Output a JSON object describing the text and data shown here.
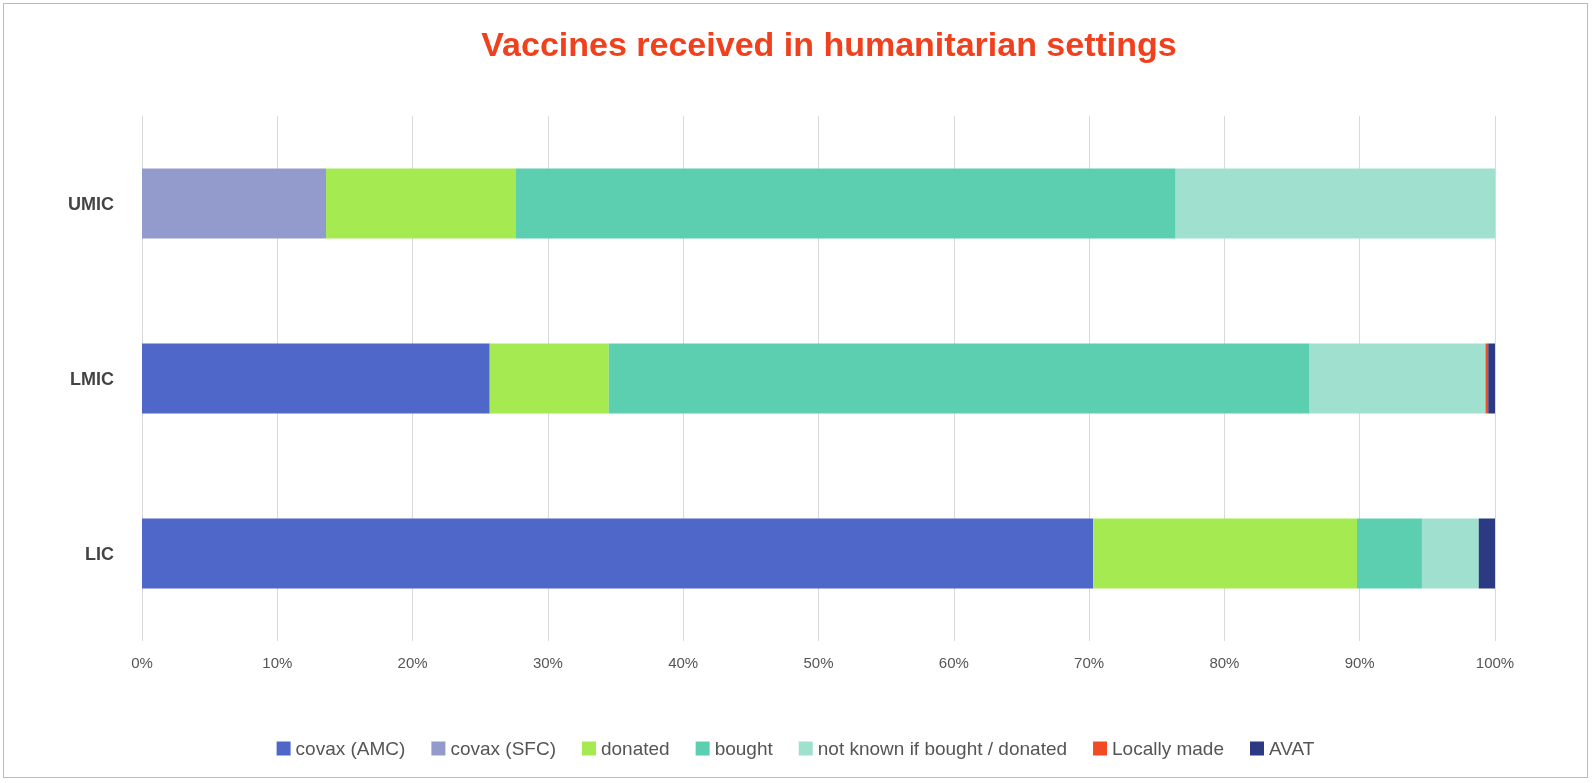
{
  "chart_data": {
    "type": "bar",
    "title": "Vaccines received in humanitarian settings",
    "orientation": "horizontal",
    "stacked": true,
    "categories": [
      "UMIC",
      "LMIC",
      "LIC"
    ],
    "series": [
      {
        "name": "covax (AMC)",
        "color": "#4f67c9",
        "values": [
          0,
          25.7,
          70.3
        ]
      },
      {
        "name": "covax (SFC)",
        "color": "#939bcc",
        "values": [
          13.6,
          0,
          0
        ]
      },
      {
        "name": "donated",
        "color": "#a6ea52",
        "values": [
          14.0,
          8.8,
          19.5
        ]
      },
      {
        "name": "bought",
        "color": "#5ccfb1",
        "values": [
          48.8,
          51.8,
          4.8
        ]
      },
      {
        "name": "not known if bought / donated",
        "color": "#9fe0cf",
        "values": [
          23.6,
          13.0,
          4.2
        ]
      },
      {
        "name": "Locally made",
        "color": "#f04b23",
        "values": [
          0,
          0.2,
          0
        ]
      },
      {
        "name": "AVAT",
        "color": "#2b3a82",
        "values": [
          0,
          0.5,
          1.2
        ]
      }
    ],
    "xlim": [
      0,
      100
    ],
    "xticks": [
      {
        "value": 0,
        "label": "0%"
      },
      {
        "value": 10,
        "label": "10%"
      },
      {
        "value": 20,
        "label": "20%"
      },
      {
        "value": 30,
        "label": "30%"
      },
      {
        "value": 40,
        "label": "40%"
      },
      {
        "value": 50,
        "label": "50%"
      },
      {
        "value": 60,
        "label": "60%"
      },
      {
        "value": 70,
        "label": "70%"
      },
      {
        "value": 80,
        "label": "80%"
      },
      {
        "value": 90,
        "label": "90%"
      },
      {
        "value": 100,
        "label": "100%"
      }
    ],
    "grid": "x",
    "legend": "bottom"
  }
}
